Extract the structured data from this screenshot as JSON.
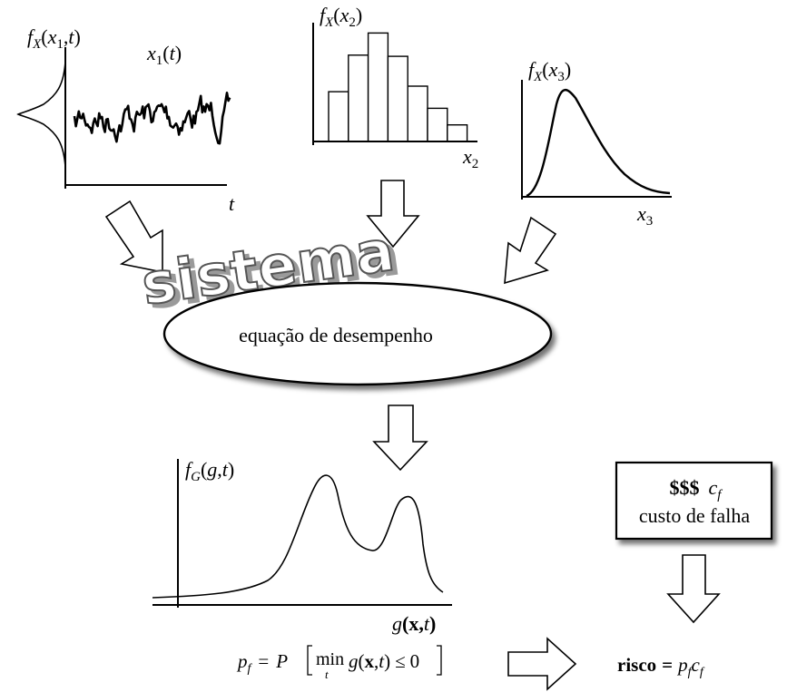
{
  "panel_x1": {
    "fx_f": "f",
    "fx_sub": "X",
    "fx_open": "(",
    "fx_var": "x",
    "fx_varsub": "1",
    "fx_comma": ",",
    "fx_t": "t",
    "fx_close": ")",
    "series_x": "x",
    "series_sub": "1",
    "series_open": "(",
    "series_t": "t",
    "series_close": ")",
    "axis_t": "t"
  },
  "panel_x2": {
    "fx_f": "f",
    "fx_sub": "X",
    "fx_open": "(",
    "fx_var": "x",
    "fx_varsub": "2",
    "fx_close": ")",
    "axis_x": "x",
    "axis_sub": "2",
    "bar_heights": [
      0.45,
      0.78,
      0.98,
      0.77,
      0.5,
      0.3,
      0.15
    ]
  },
  "panel_x3": {
    "fx_f": "f",
    "fx_sub": "X",
    "fx_open": "(",
    "fx_var": "x",
    "fx_varsub": "3",
    "fx_close": ")",
    "axis_x": "x",
    "axis_sub": "3"
  },
  "system_word": "sistema",
  "equation_label": "equação de desempenho",
  "panel_g": {
    "fg_f": "f",
    "fg_sub": "G",
    "fg_open": "(",
    "fg_g": "g",
    "fg_comma": ",",
    "fg_t": "t",
    "fg_close": ")",
    "axis_g": "g",
    "axis_open": "(",
    "axis_x": "x",
    "axis_comma": ",",
    "axis_t": "t",
    "axis_close": ")"
  },
  "formula_pf": {
    "p": "p",
    "p_sub": "f",
    "eq": "=",
    "P": "P",
    "min": "min",
    "min_sub": "t",
    "g": "g",
    "open": "(",
    "x": "x",
    "comma": ",",
    "t": "t",
    "close": ")",
    "leq": "≤",
    "zero": "0"
  },
  "cost_box": {
    "dollars": "$$$",
    "c": "c",
    "c_sub": "f",
    "label": "custo de falha"
  },
  "risk": {
    "label": "risco",
    "eq": "=",
    "p": "p",
    "p_sub": "f",
    "c": "c",
    "c_sub": "f"
  },
  "colors": {
    "ink": "#000000",
    "system_fill": "#ffffff",
    "system_stroke": "#555555",
    "system_shadow": "#9a9a9a"
  }
}
